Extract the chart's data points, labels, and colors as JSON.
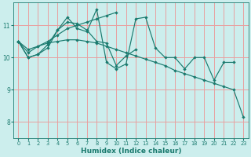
{
  "xlabel": "Humidex (Indice chaleur)",
  "background_color": "#cceeed",
  "grid_color": "#e8a0a0",
  "line_color": "#1a7a6e",
  "xlim": [
    -0.5,
    23.5
  ],
  "ylim": [
    7.5,
    11.7
  ],
  "yticks": [
    8,
    9,
    10,
    11
  ],
  "xticks": [
    0,
    1,
    2,
    3,
    4,
    5,
    6,
    7,
    8,
    9,
    10,
    11,
    12,
    13,
    14,
    15,
    16,
    17,
    18,
    19,
    20,
    21,
    22,
    23
  ],
  "series": [
    {
      "x": [
        0,
        1,
        2,
        3,
        4,
        5,
        6,
        7,
        8,
        9,
        10,
        11,
        12,
        13,
        14,
        15,
        16,
        17,
        18,
        19,
        20,
        21,
        22
      ],
      "y": [
        10.5,
        10.0,
        10.1,
        10.3,
        10.85,
        11.25,
        10.9,
        10.8,
        11.5,
        9.85,
        9.65,
        9.8,
        11.2,
        11.25,
        10.3,
        10.0,
        10.0,
        9.65,
        10.0,
        10.0,
        9.3,
        9.85,
        9.85
      ]
    },
    {
      "x": [
        0,
        1,
        2,
        3,
        4,
        5,
        6,
        7,
        8,
        9,
        10,
        11,
        12
      ],
      "y": [
        10.5,
        10.0,
        10.1,
        10.4,
        10.85,
        11.1,
        11.05,
        10.85,
        10.5,
        10.45,
        9.75,
        10.05,
        10.25
      ]
    },
    {
      "x": [
        0,
        1,
        2,
        3,
        4,
        5,
        6,
        7,
        8,
        9,
        10
      ],
      "y": [
        10.5,
        10.15,
        10.35,
        10.5,
        10.7,
        10.9,
        11.0,
        11.1,
        11.2,
        11.3,
        11.4
      ]
    },
    {
      "x": [
        0,
        1,
        2,
        3,
        4,
        5,
        6,
        7,
        8,
        9,
        10,
        11,
        12,
        13,
        14,
        15,
        16,
        17,
        18,
        19,
        20,
        21,
        22,
        23
      ],
      "y": [
        10.5,
        10.25,
        10.35,
        10.45,
        10.5,
        10.55,
        10.55,
        10.5,
        10.45,
        10.35,
        10.25,
        10.15,
        10.05,
        9.95,
        9.85,
        9.75,
        9.6,
        9.5,
        9.4,
        9.3,
        9.2,
        9.1,
        9.0,
        8.15
      ]
    }
  ]
}
